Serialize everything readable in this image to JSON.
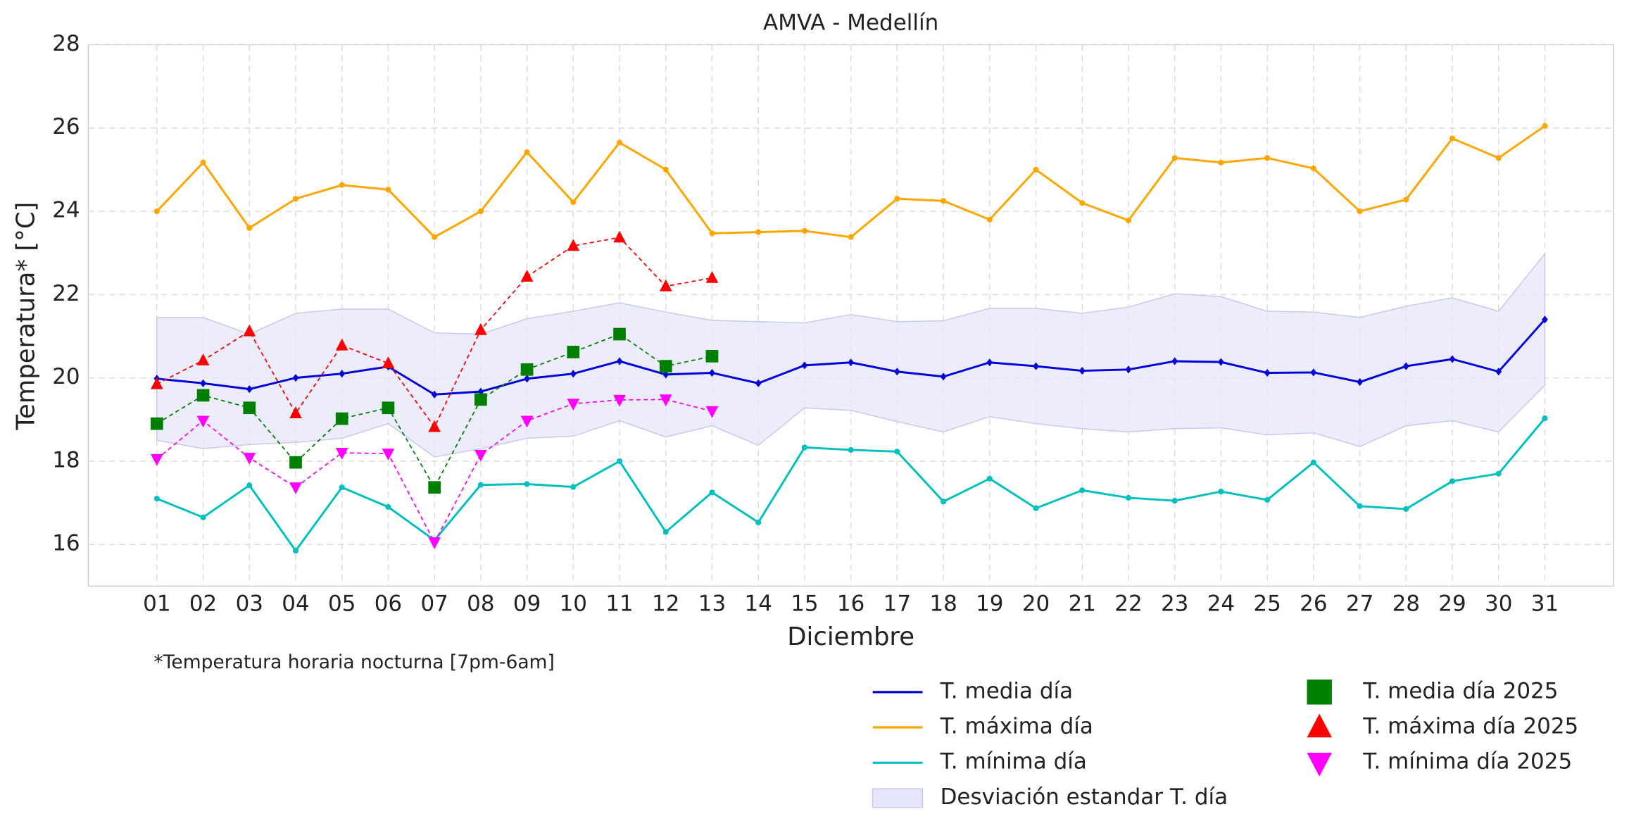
{
  "chart_data": {
    "type": "line",
    "title": "AMVA - Medellín",
    "x_label": "Diciembre",
    "y_label": "Temperatura* [°C]",
    "note": "*Temperatura horaria nocturna [7pm-6am]",
    "categories": [
      "01",
      "02",
      "03",
      "04",
      "05",
      "06",
      "07",
      "08",
      "09",
      "10",
      "11",
      "12",
      "13",
      "14",
      "15",
      "16",
      "17",
      "18",
      "19",
      "20",
      "21",
      "22",
      "23",
      "24",
      "25",
      "26",
      "27",
      "28",
      "29",
      "30",
      "31"
    ],
    "ylim": [
      15,
      28
    ],
    "yticks": [
      16,
      18,
      20,
      22,
      24,
      26,
      28
    ],
    "grid": true,
    "band": {
      "name": "Desviación estandar T. día",
      "color": "#e6e6fa",
      "upper": [
        21.45,
        21.45,
        21.05,
        21.55,
        21.65,
        21.65,
        21.08,
        21.05,
        21.42,
        21.6,
        21.8,
        21.58,
        21.38,
        21.35,
        21.32,
        21.52,
        21.35,
        21.37,
        21.67,
        21.67,
        21.55,
        21.7,
        22.02,
        21.95,
        21.6,
        21.58,
        21.45,
        21.72,
        21.92,
        21.6,
        22.98
      ],
      "lower": [
        18.5,
        18.3,
        18.4,
        18.45,
        18.55,
        18.9,
        18.1,
        18.3,
        18.55,
        18.6,
        18.97,
        18.58,
        18.85,
        18.38,
        19.28,
        19.22,
        18.95,
        18.7,
        19.07,
        18.9,
        18.78,
        18.7,
        18.78,
        18.8,
        18.63,
        18.68,
        18.35,
        18.85,
        18.97,
        18.7,
        19.82
      ]
    },
    "series": [
      {
        "name": "T. media día",
        "color": "#0000dd",
        "marker": "diamond",
        "dashed": false,
        "values": [
          19.98,
          19.87,
          19.73,
          20.0,
          20.1,
          20.27,
          19.6,
          19.67,
          19.98,
          20.1,
          20.4,
          20.08,
          20.12,
          19.87,
          20.3,
          20.37,
          20.15,
          20.03,
          20.37,
          20.28,
          20.17,
          20.2,
          20.4,
          20.38,
          20.12,
          20.13,
          19.9,
          20.28,
          20.45,
          20.15,
          21.4
        ]
      },
      {
        "name": "T. máxima día",
        "color": "#ffa500",
        "marker": "circle",
        "dashed": false,
        "values": [
          24.0,
          25.17,
          23.6,
          24.3,
          24.63,
          24.52,
          23.38,
          24.0,
          25.42,
          24.22,
          25.65,
          25.0,
          23.47,
          23.5,
          23.53,
          23.38,
          24.3,
          24.25,
          23.8,
          25.0,
          24.2,
          23.78,
          25.28,
          25.17,
          25.28,
          25.03,
          24.0,
          24.28,
          25.75,
          25.28,
          26.05
        ]
      },
      {
        "name": "T. mínima día",
        "color": "#00bfbf",
        "marker": "circle",
        "dashed": false,
        "values": [
          17.1,
          16.65,
          17.42,
          15.85,
          17.37,
          16.9,
          16.1,
          17.43,
          17.45,
          17.38,
          18.0,
          16.3,
          17.25,
          16.53,
          18.33,
          18.27,
          18.23,
          17.03,
          17.58,
          16.87,
          17.3,
          17.12,
          17.05,
          17.27,
          17.07,
          17.97,
          16.92,
          16.85,
          17.52,
          17.7,
          19.03
        ]
      },
      {
        "name": "T. media día 2025",
        "color": "#008000",
        "marker": "square",
        "dashed": true,
        "values": [
          18.9,
          19.58,
          19.28,
          17.97,
          19.02,
          19.28,
          17.37,
          19.48,
          20.2,
          20.62,
          21.05,
          20.28,
          20.52,
          null,
          null,
          null,
          null,
          null,
          null,
          null,
          null,
          null,
          null,
          null,
          null,
          null,
          null,
          null,
          null,
          null,
          null
        ]
      },
      {
        "name": "T. máxima día 2025",
        "color": "#ff0000",
        "marker": "triangle-up",
        "dashed": true,
        "values": [
          19.85,
          20.42,
          21.12,
          19.15,
          20.78,
          20.35,
          18.82,
          21.15,
          22.43,
          23.17,
          23.37,
          22.2,
          22.4,
          null,
          null,
          null,
          null,
          null,
          null,
          null,
          null,
          null,
          null,
          null,
          null,
          null,
          null,
          null,
          null,
          null,
          null
        ]
      },
      {
        "name": "T. mínima día 2025",
        "color": "#ff00ff",
        "marker": "triangle-down",
        "dashed": true,
        "values": [
          18.05,
          18.97,
          18.08,
          17.37,
          18.2,
          18.18,
          16.05,
          18.15,
          18.97,
          19.38,
          19.47,
          19.48,
          19.2,
          null,
          null,
          null,
          null,
          null,
          null,
          null,
          null,
          null,
          null,
          null,
          null,
          null,
          null,
          null,
          null,
          null,
          null
        ]
      }
    ]
  }
}
